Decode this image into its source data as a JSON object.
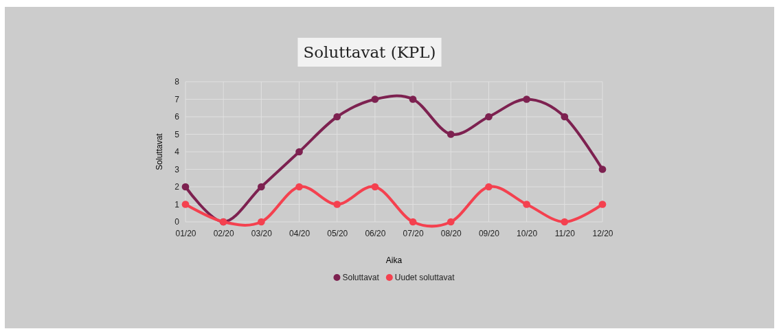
{
  "chart_data": {
    "type": "line",
    "title": "Soluttavat (KPL)",
    "xlabel": "Aika",
    "ylabel": "Soluttavat",
    "categories": [
      "01/20",
      "02/20",
      "03/20",
      "04/20",
      "05/20",
      "06/20",
      "07/20",
      "08/20",
      "09/20",
      "10/20",
      "11/20",
      "12/20"
    ],
    "series": [
      {
        "name": "Soluttavat",
        "color": "#7d2150",
        "values": [
          2,
          0,
          2,
          4,
          6,
          7,
          7,
          5,
          6,
          7,
          6,
          3
        ]
      },
      {
        "name": "Uudet soluttavat",
        "color": "#f4414f",
        "values": [
          1,
          0,
          0,
          2,
          1,
          2,
          0,
          0,
          2,
          1,
          0,
          1
        ]
      }
    ],
    "ylim": [
      0,
      8
    ],
    "yticks": [
      0,
      1,
      2,
      3,
      4,
      5,
      6,
      7,
      8
    ],
    "grid": true,
    "legend": "bottom",
    "marker": "circle",
    "line_style": "solid"
  }
}
